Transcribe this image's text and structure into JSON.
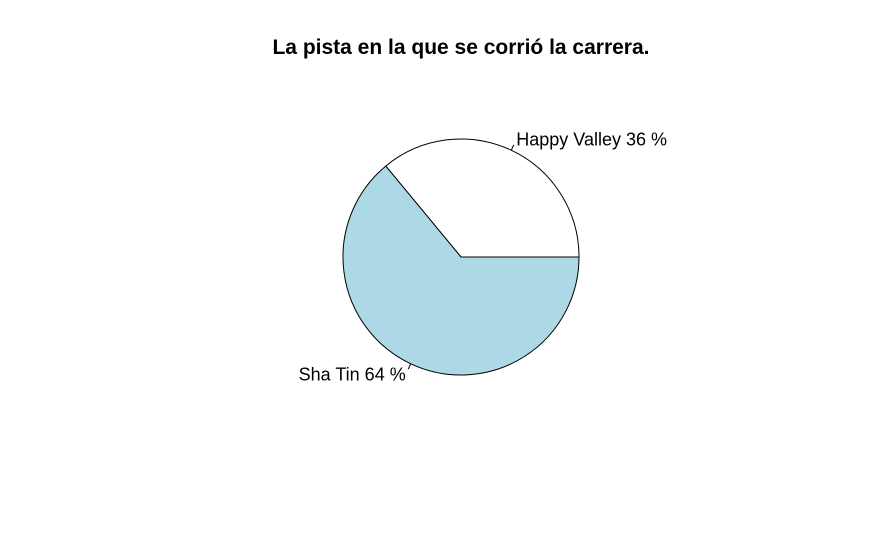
{
  "chart_data": {
    "type": "pie",
    "title": "La pista en la que se corrió la carrera.",
    "slices": [
      {
        "category": "Happy Valley",
        "value": 36,
        "label": "Happy Valley 36 %",
        "color": "#ffffff"
      },
      {
        "category": "Sha Tin",
        "value": 64,
        "label": "Sha Tin 64 %",
        "color": "#add8e6"
      }
    ],
    "start_angle_deg": 0,
    "direction": "counterclockwise",
    "outline_color": "#000000"
  }
}
